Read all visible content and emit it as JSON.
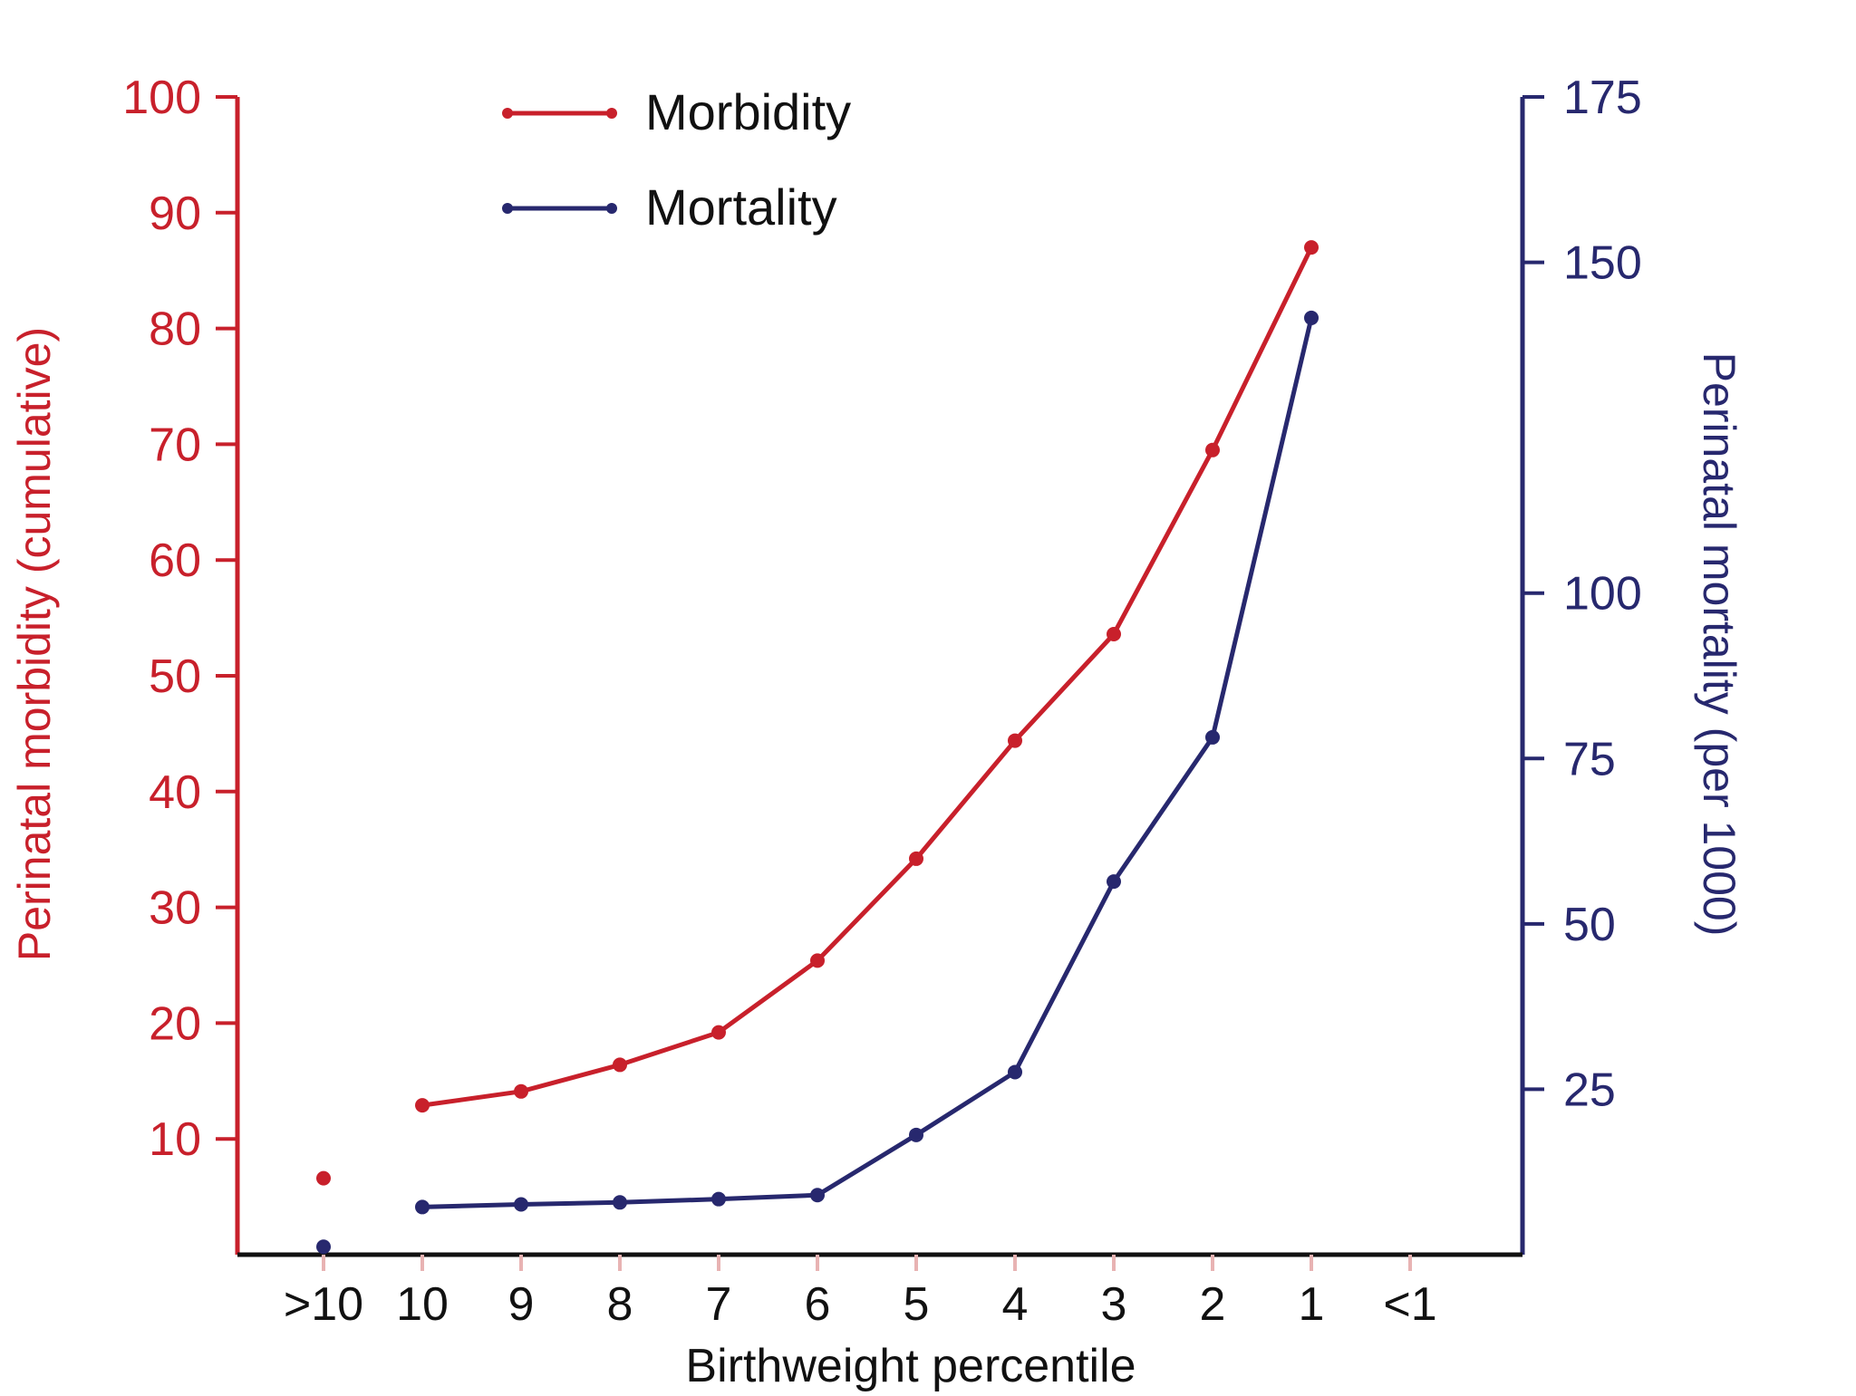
{
  "chart_data": {
    "type": "line",
    "title": "",
    "xlabel": "Birthweight percentile",
    "categories": [
      ">10",
      "10",
      "9",
      "8",
      "7",
      "6",
      "5",
      "4",
      "3",
      "2",
      "1",
      "<1"
    ],
    "left_axis": {
      "label": "Perinatal morbidity (cumulative)",
      "ylim": [
        0,
        100
      ],
      "ticks": [
        10,
        20,
        30,
        40,
        50,
        60,
        70,
        80,
        90,
        100
      ],
      "color": "#c8202b"
    },
    "right_axis": {
      "label": "Perinatal mortality (per 1000)",
      "ylim": [
        0,
        175
      ],
      "ticks": [
        25,
        50,
        75,
        100,
        150,
        175
      ],
      "color": "#27286e"
    },
    "series": [
      {
        "name": "Morbidity",
        "axis": "left",
        "color": "#c8202b",
        "isolated_values": [
          6.6,
          null,
          null,
          null,
          null,
          null,
          null,
          null,
          null,
          null,
          null,
          null
        ],
        "values": [
          null,
          12.9,
          14.1,
          16.4,
          19.2,
          25.4,
          34.2,
          44.4,
          53.6,
          69.5,
          87.0,
          null
        ]
      },
      {
        "name": "Mortality",
        "axis": "right",
        "color": "#27286e",
        "isolated_values": [
          1.2,
          null,
          null,
          null,
          null,
          null,
          null,
          null,
          null,
          null,
          null,
          null
        ],
        "values": [
          null,
          7.2,
          7.6,
          7.9,
          8.4,
          9.0,
          18.1,
          27.6,
          56.4,
          78.2,
          141.6,
          null
        ]
      }
    ],
    "legend": {
      "position": "top-left",
      "entries": [
        "Morbidity",
        "Mortality"
      ]
    },
    "grid": false
  }
}
